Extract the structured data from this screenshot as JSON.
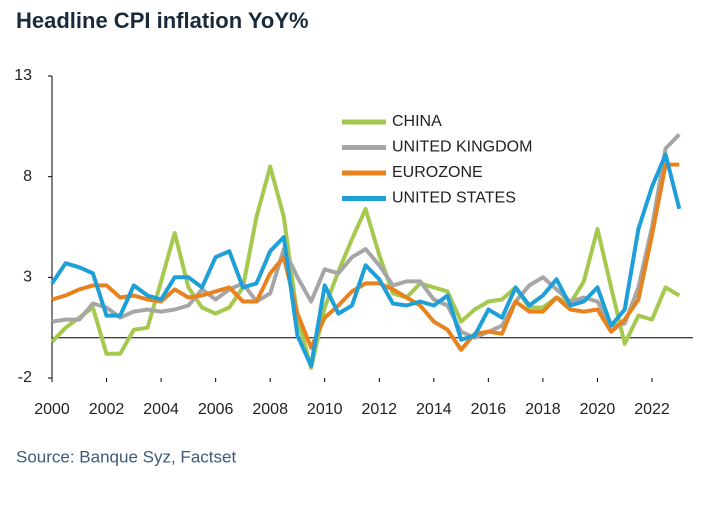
{
  "chart_data": {
    "type": "line",
    "title": "Headline CPI inflation YoY%",
    "source": "Source: Banque Syz, Factset",
    "x": [
      2000,
      2000.5,
      2001,
      2001.5,
      2002,
      2002.5,
      2003,
      2003.5,
      2004,
      2004.5,
      2005,
      2005.5,
      2006,
      2006.5,
      2007,
      2007.5,
      2008,
      2008.5,
      2009,
      2009.5,
      2010,
      2010.5,
      2011,
      2011.5,
      2012,
      2012.5,
      2013,
      2013.5,
      2014,
      2014.5,
      2015,
      2015.5,
      2016,
      2016.5,
      2017,
      2017.5,
      2018,
      2018.5,
      2019,
      2019.5,
      2020,
      2020.5,
      2021,
      2021.5,
      2022,
      2022.5,
      2023
    ],
    "series": [
      {
        "name": "CHINA",
        "color": "#a5c94f",
        "values": [
          -0.2,
          0.5,
          1.0,
          1.5,
          -0.8,
          -0.8,
          0.4,
          0.5,
          2.8,
          5.2,
          2.5,
          1.5,
          1.2,
          1.5,
          2.5,
          6.0,
          8.5,
          6.0,
          1.0,
          -1.5,
          1.5,
          3.3,
          4.9,
          6.4,
          4.1,
          2.2,
          2.0,
          2.7,
          2.5,
          2.3,
          0.8,
          1.4,
          1.8,
          1.9,
          2.5,
          1.5,
          1.5,
          2.0,
          1.7,
          2.8,
          5.4,
          2.5,
          -0.3,
          1.1,
          0.9,
          2.5,
          2.1
        ]
      },
      {
        "name": "UNITED KINGDOM",
        "color": "#a6a6a6",
        "values": [
          0.8,
          0.9,
          0.9,
          1.7,
          1.5,
          1.0,
          1.3,
          1.4,
          1.3,
          1.4,
          1.6,
          2.4,
          1.9,
          2.4,
          2.7,
          1.8,
          2.2,
          4.4,
          3.0,
          1.8,
          3.4,
          3.2,
          4.0,
          4.4,
          3.6,
          2.6,
          2.8,
          2.8,
          1.9,
          1.6,
          0.3,
          0.0,
          0.3,
          0.6,
          1.8,
          2.6,
          3.0,
          2.4,
          1.8,
          2.0,
          1.8,
          0.6,
          0.7,
          2.5,
          5.5,
          9.4,
          10.1
        ]
      },
      {
        "name": "EUROZONE",
        "color": "#e8821e",
        "values": [
          1.9,
          2.1,
          2.4,
          2.6,
          2.6,
          2.0,
          2.1,
          1.9,
          1.8,
          2.4,
          2.0,
          2.1,
          2.3,
          2.5,
          1.8,
          1.8,
          3.2,
          4.0,
          1.2,
          -0.5,
          1.0,
          1.6,
          2.3,
          2.7,
          2.7,
          2.4,
          2.0,
          1.6,
          0.8,
          0.4,
          -0.6,
          0.2,
          0.3,
          0.2,
          1.8,
          1.3,
          1.3,
          2.0,
          1.4,
          1.3,
          1.4,
          0.3,
          0.9,
          1.9,
          5.1,
          8.6,
          8.6
        ]
      },
      {
        "name": "UNITED STATES",
        "color": "#1f9fd8",
        "values": [
          2.7,
          3.7,
          3.5,
          3.2,
          1.1,
          1.1,
          2.6,
          2.1,
          1.9,
          3.0,
          3.0,
          2.5,
          4.0,
          4.3,
          2.5,
          2.7,
          4.3,
          5.0,
          0.1,
          -1.4,
          2.6,
          1.2,
          1.6,
          3.6,
          2.9,
          1.7,
          1.6,
          1.8,
          1.6,
          2.1,
          -0.1,
          0.1,
          1.4,
          1.0,
          2.5,
          1.6,
          2.1,
          2.9,
          1.6,
          1.8,
          2.5,
          0.6,
          1.4,
          5.4,
          7.5,
          9.1,
          6.4
        ]
      }
    ],
    "xlim": [
      2000,
      2023.5
    ],
    "xticks": [
      2000,
      2002,
      2004,
      2006,
      2008,
      2010,
      2012,
      2014,
      2016,
      2018,
      2020,
      2022
    ],
    "ylim": [
      -2,
      13
    ],
    "yticks": [
      -2,
      3,
      8,
      13
    ]
  }
}
